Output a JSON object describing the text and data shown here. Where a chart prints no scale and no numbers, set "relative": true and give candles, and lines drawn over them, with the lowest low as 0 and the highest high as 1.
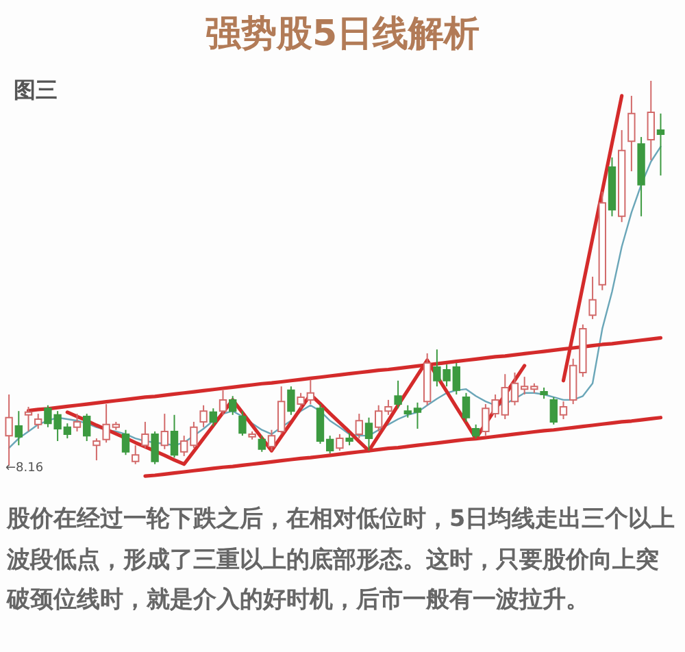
{
  "chart_data": {
    "type": "candlestick",
    "title": "强势股5日线解析",
    "subtitle": "图三",
    "relative": true,
    "tick_labels": false,
    "categories": [
      null,
      null,
      null,
      null,
      null,
      null,
      null,
      null,
      null,
      null,
      null,
      null,
      null,
      null,
      null,
      null,
      null,
      null,
      null,
      null,
      null,
      null,
      null,
      null,
      null,
      null,
      null,
      null,
      null,
      null,
      null,
      null,
      null,
      null,
      null,
      null,
      null,
      null,
      null,
      null,
      null,
      null,
      null,
      null,
      null,
      null,
      null,
      null,
      null,
      null,
      null,
      null,
      null,
      null,
      null,
      null,
      null,
      null,
      null,
      null,
      null,
      null,
      null,
      null,
      null,
      null,
      null,
      null
    ],
    "ohlc": [
      [
        0.078,
        0.185,
        0,
        0.125
      ],
      [
        0.103,
        0.142,
        0.053,
        0.075
      ],
      [
        0.132,
        0.153,
        0.089,
        0.139
      ],
      [
        0.107,
        0.135,
        0.096,
        0.121
      ],
      [
        0.149,
        0.157,
        0.1,
        0.11
      ],
      [
        0.132,
        0.142,
        0.064,
        0.096
      ],
      [
        0.1,
        0.11,
        0.071,
        0.082
      ],
      [
        0.1,
        0.135,
        0.089,
        0.114
      ],
      [
        0.128,
        0.135,
        0.064,
        0.078
      ],
      [
        0.053,
        0.071,
        0.014,
        0.064
      ],
      [
        0.068,
        0.16,
        0.06,
        0.107
      ],
      [
        0.1,
        0.114,
        0.093,
        0.107
      ],
      [
        0.082,
        0.093,
        0.028,
        0.036
      ],
      [
        0.011,
        0.053,
        0.004,
        0.028
      ],
      [
        0.053,
        0.114,
        0.046,
        0.082
      ],
      [
        0.082,
        0.089,
        0.004,
        0.011
      ],
      [
        0.053,
        0.135,
        0.043,
        0.089
      ],
      [
        0.089,
        0.132,
        0.021,
        0.028
      ],
      [
        0.036,
        0.078,
        0.025,
        0.064
      ],
      [
        0.053,
        0.114,
        0.046,
        0.1
      ],
      [
        0.114,
        0.157,
        0.1,
        0.142
      ],
      [
        0.139,
        0.149,
        0.103,
        0.114
      ],
      [
        0.142,
        0.196,
        0.132,
        0.171
      ],
      [
        0.171,
        0.181,
        0.132,
        0.142
      ],
      [
        0.128,
        0.142,
        0.078,
        0.085
      ],
      [
        0.075,
        0.089,
        0.068,
        0.082
      ],
      [
        0.068,
        0.078,
        0.036,
        0.043
      ],
      [
        0.05,
        0.093,
        0.039,
        0.078
      ],
      [
        0.089,
        0.206,
        0.082,
        0.167
      ],
      [
        0.196,
        0.206,
        0.132,
        0.142
      ],
      [
        0.16,
        0.189,
        0.149,
        0.178
      ],
      [
        0.171,
        0.224,
        0.16,
        0.189
      ],
      [
        0.149,
        0.16,
        0.057,
        0.064
      ],
      [
        0.068,
        0.078,
        0.032,
        0.039
      ],
      [
        0.046,
        0.082,
        0.039,
        0.071
      ],
      [
        0.071,
        0.085,
        0.053,
        0.064
      ],
      [
        0.082,
        0.135,
        0.071,
        0.117
      ],
      [
        0.11,
        0.125,
        0.039,
        0.071
      ],
      [
        0.1,
        0.157,
        0.089,
        0.142
      ],
      [
        0.142,
        0.171,
        0.132,
        0.153
      ],
      [
        0.181,
        0.221,
        0.149,
        0.16
      ],
      [
        0.142,
        0.157,
        0.125,
        0.135
      ],
      [
        0.149,
        0.164,
        0.096,
        0.139
      ],
      [
        0.167,
        0.292,
        0.157,
        0.267
      ],
      [
        0.256,
        0.302,
        0.206,
        0.221
      ],
      [
        0.249,
        0.263,
        0.206,
        0.221
      ],
      [
        0.256,
        0.267,
        0.185,
        0.196
      ],
      [
        0.178,
        0.189,
        0.114,
        0.125
      ],
      [
        0.096,
        0.107,
        0.071,
        0.078
      ],
      [
        0.089,
        0.16,
        0.078,
        0.149
      ],
      [
        0.135,
        0.185,
        0.125,
        0.171
      ],
      [
        0.132,
        0.238,
        0.121,
        0.203
      ],
      [
        0.167,
        0.242,
        0.157,
        0.214
      ],
      [
        0.199,
        0.231,
        0.185,
        0.206
      ],
      [
        0.199,
        0.214,
        0.189,
        0.206
      ],
      [
        0.192,
        0.203,
        0.174,
        0.185
      ],
      [
        0.171,
        0.178,
        0.107,
        0.114
      ],
      [
        0.132,
        0.167,
        0.121,
        0.153
      ],
      [
        0.171,
        0.278,
        0.16,
        0.26
      ],
      [
        0.242,
        0.367,
        0.231,
        0.356
      ],
      [
        0.391,
        0.491,
        0.381,
        0.431
      ],
      [
        0.47,
        0.712,
        0.456,
        0.683
      ],
      [
        0.776,
        0.801,
        0.648,
        0.665
      ],
      [
        0.648,
        0.872,
        0.633,
        0.819
      ],
      [
        0.843,
        0.961,
        0.765,
        0.915
      ],
      [
        0.836,
        0.854,
        0.648,
        0.73
      ],
      [
        0.847,
        1,
        0.794,
        0.918
      ],
      [
        0.872,
        0.915,
        0.754,
        0.861
      ]
    ],
    "colors": [
      "#d26a6a",
      "#3c9a40",
      "#d26a6a",
      "#d26a6a",
      "#3c9a40",
      "#3c9a40",
      "#3c9a40",
      "#d26a6a",
      "#3c9a40",
      "#d26a6a",
      "#d26a6a",
      "#d26a6a",
      "#3c9a40",
      "#d26a6a",
      "#d26a6a",
      "#3c9a40",
      "#d26a6a",
      "#3c9a40",
      "#d26a6a",
      "#d26a6a",
      "#d26a6a",
      "#3c9a40",
      "#d26a6a",
      "#3c9a40",
      "#3c9a40",
      "#d26a6a",
      "#3c9a40",
      "#d26a6a",
      "#d26a6a",
      "#3c9a40",
      "#d26a6a",
      "#d26a6a",
      "#3c9a40",
      "#3c9a40",
      "#d26a6a",
      "#3c9a40",
      "#d26a6a",
      "#3c9a40",
      "#d26a6a",
      "#d26a6a",
      "#3c9a40",
      "#3c9a40",
      "#3c9a40",
      "#d26a6a",
      "#3c9a40",
      "#3c9a40",
      "#3c9a40",
      "#3c9a40",
      "#3c9a40",
      "#d26a6a",
      "#d26a6a",
      "#d26a6a",
      "#d26a6a",
      "#d26a6a",
      "#d26a6a",
      "#3c9a40",
      "#3c9a40",
      "#d26a6a",
      "#d26a6a",
      "#d26a6a",
      "#d26a6a",
      "#d26a6a",
      "#3c9a40",
      "#d26a6a",
      "#d26a6a",
      "#3c9a40",
      "#d26a6a",
      "#3c9a40"
    ],
    "series": [
      {
        "type": "line",
        "color": "#6aa6b8",
        "values": [
          0.046,
          0.071,
          0.089,
          0.107,
          0.117,
          0.125,
          0.121,
          0.117,
          0.11,
          0.1,
          0.093,
          0.089,
          0.082,
          0.071,
          0.064,
          0.06,
          0.057,
          0.053,
          0.06,
          0.078,
          0.096,
          0.117,
          0.135,
          0.142,
          0.128,
          0.11,
          0.093,
          0.082,
          0.1,
          0.117,
          0.142,
          0.157,
          0.142,
          0.117,
          0.1,
          0.082,
          0.078,
          0.078,
          0.093,
          0.107,
          0.121,
          0.132,
          0.139,
          0.157,
          0.174,
          0.189,
          0.196,
          0.199,
          0.181,
          0.167,
          0.157,
          0.16,
          0.174,
          0.189,
          0.189,
          0.185,
          0.178,
          0.171,
          0.171,
          0.181,
          0.214,
          0.356,
          0.452,
          0.569,
          0.658,
          0.73,
          0.79,
          0.829
        ]
      },
      {
        "type": "line",
        "color": "#d42b2b",
        "values": [
          null,
          null,
          0.143,
          0.146,
          0.148,
          0.151,
          0.154,
          0.157,
          0.16,
          0.163,
          0.166,
          0.169,
          0.172,
          0.175,
          0.178,
          0.18,
          0.183,
          0.186,
          0.189,
          0.192,
          0.195,
          0.198,
          0.201,
          0.204,
          0.207,
          0.21,
          0.213,
          0.215,
          0.218,
          0.221,
          0.224,
          0.227,
          0.23,
          0.233,
          0.236,
          0.239,
          0.242,
          0.245,
          0.248,
          0.25,
          0.253,
          0.256,
          0.259,
          0.262,
          0.265,
          0.268,
          0.271,
          0.274,
          0.277,
          0.28,
          0.283,
          0.285,
          0.288,
          0.291,
          0.294,
          0.297,
          0.3,
          0.303,
          0.306,
          0.309,
          0.312,
          0.315,
          0.317,
          0.32,
          0.323,
          0.326,
          0.329,
          0.332
        ]
      },
      {
        "type": "line",
        "color": "#d42b2b",
        "values": [
          null,
          null,
          null,
          null,
          null,
          null,
          null,
          null,
          null,
          null,
          null,
          null,
          null,
          null,
          -0.027,
          -0.025,
          -0.022,
          -0.019,
          -0.016,
          -0.013,
          -0.01,
          -0.007,
          -0.004,
          -0.002,
          0.001,
          0.004,
          0.007,
          0.01,
          0.013,
          0.016,
          0.019,
          0.021,
          0.024,
          0.027,
          0.03,
          0.033,
          0.036,
          0.039,
          0.042,
          0.045,
          0.047,
          0.05,
          0.053,
          0.056,
          0.059,
          0.062,
          0.065,
          0.068,
          0.07,
          0.073,
          0.076,
          0.079,
          0.082,
          0.085,
          0.088,
          0.091,
          0.093,
          0.096,
          0.099,
          0.102,
          0.105,
          0.108,
          0.111,
          0.114,
          0.116,
          0.119,
          0.122,
          0.125
        ]
      },
      {
        "type": "line",
        "color": "#d42b2b",
        "values": [
          null,
          null,
          null,
          null,
          null,
          null,
          0.139,
          0.128,
          0.117,
          0.105,
          0.094,
          0.083,
          0.072,
          0.06,
          0.049,
          0.038,
          0.027,
          0.015,
          0.004,
          0.037,
          0.071,
          0.104,
          0.138,
          0.171,
          0.138,
          0.105,
          0.072,
          0.039,
          0.076,
          0.112,
          0.149,
          0.185,
          0.161,
          0.136,
          0.112,
          0.088,
          0.063,
          0.039,
          0.078,
          0.117,
          0.157,
          0.196,
          0.235,
          0.274,
          0.233,
          0.193,
          0.152,
          0.112,
          0.071,
          0.109,
          0.147,
          0.184,
          0.222,
          0.26,
          null,
          null,
          null,
          null,
          null,
          null,
          null,
          null,
          null,
          null,
          null,
          null,
          null,
          null
        ]
      },
      {
        "type": "line",
        "color": "#d42b2b",
        "values": [
          null,
          null,
          null,
          null,
          null,
          null,
          null,
          null,
          null,
          null,
          null,
          null,
          null,
          null,
          null,
          null,
          null,
          null,
          null,
          null,
          null,
          null,
          null,
          null,
          null,
          null,
          null,
          null,
          null,
          null,
          null,
          null,
          null,
          null,
          null,
          null,
          null,
          null,
          null,
          null,
          null,
          null,
          null,
          null,
          null,
          null,
          null,
          null,
          null,
          null,
          null,
          null,
          null,
          null,
          null,
          null,
          null,
          0.221,
          0.344,
          0.468,
          0.591,
          0.714,
          0.838,
          0.961,
          null,
          null,
          null,
          null
        ]
      }
    ],
    "annotations": [
      "←8.16",
      "股价在经过一轮下跌之后，在相对低位时，5日均线走出三个以上波段低点，形成了三重以上的底部形态。这时，只要股价向上突破颈位线时，就是介入的好时机，后市一般有一波拉升。"
    ]
  }
}
